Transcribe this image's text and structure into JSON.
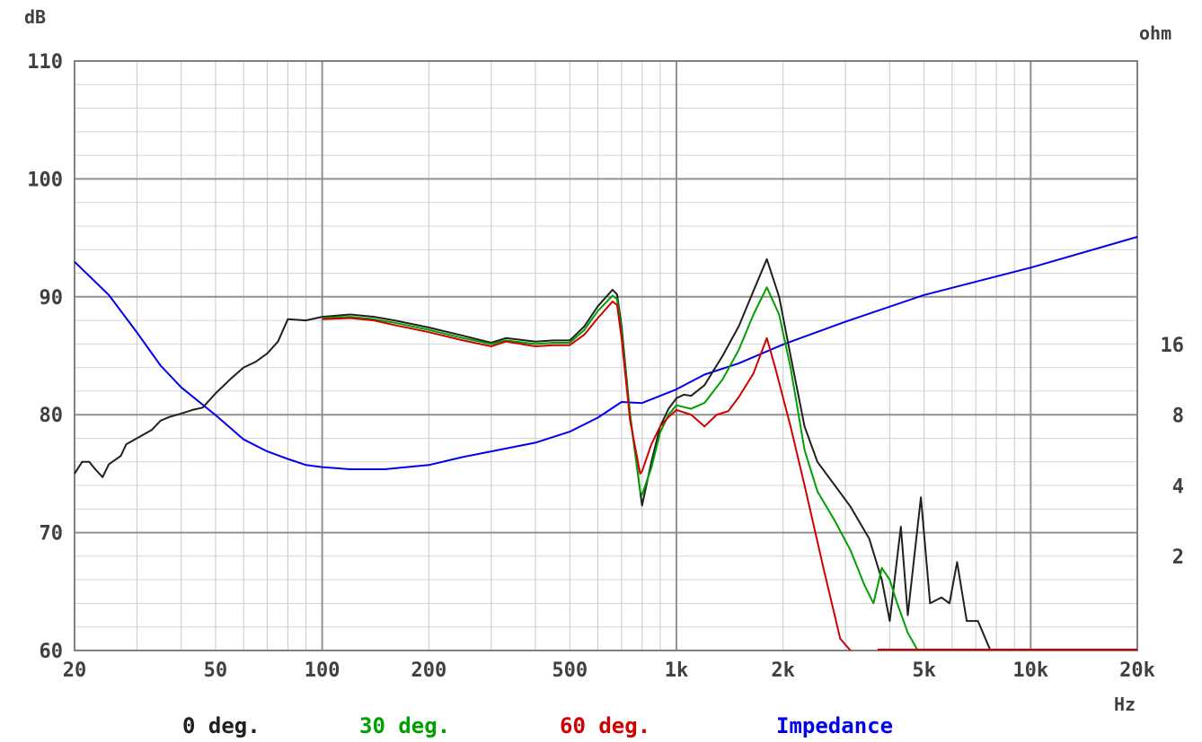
{
  "chart_data": {
    "type": "line",
    "y_unit": "dB",
    "y2_unit": "ohm",
    "x_unit": "Hz",
    "x_scale": "log",
    "xlim": [
      20,
      20000
    ],
    "ylim": [
      60,
      110
    ],
    "y2_scale": "log",
    "grid": true,
    "x_ticks": [
      {
        "value": 20,
        "label": "20"
      },
      {
        "value": 50,
        "label": "50"
      },
      {
        "value": 100,
        "label": "100"
      },
      {
        "value": 200,
        "label": "200"
      },
      {
        "value": 500,
        "label": "500"
      },
      {
        "value": 1000,
        "label": "1k"
      },
      {
        "value": 2000,
        "label": "2k"
      },
      {
        "value": 5000,
        "label": "5k"
      },
      {
        "value": 10000,
        "label": "10k"
      },
      {
        "value": 20000,
        "label": "20k"
      }
    ],
    "y_ticks": [
      {
        "value": 60,
        "label": "60"
      },
      {
        "value": 70,
        "label": "70"
      },
      {
        "value": 80,
        "label": "80"
      },
      {
        "value": 90,
        "label": "90"
      },
      {
        "value": 100,
        "label": "100"
      },
      {
        "value": 110,
        "label": "110"
      }
    ],
    "y2_ticks": [
      {
        "value": 2,
        "label": "2"
      },
      {
        "value": 4,
        "label": "4"
      },
      {
        "value": 8,
        "label": "8"
      },
      {
        "value": 16,
        "label": "16"
      }
    ],
    "legend_position": "bottom",
    "series": [
      {
        "name": "0 deg.",
        "color": "#202020",
        "axis": "left",
        "points": [
          [
            20,
            75
          ],
          [
            21,
            76
          ],
          [
            22,
            76
          ],
          [
            23,
            75.3
          ],
          [
            24,
            74.7
          ],
          [
            25,
            75.8
          ],
          [
            27,
            76.5
          ],
          [
            28,
            77.5
          ],
          [
            30,
            78
          ],
          [
            33,
            78.7
          ],
          [
            35,
            79.5
          ],
          [
            37,
            79.8
          ],
          [
            40,
            80.1
          ],
          [
            43,
            80.4
          ],
          [
            46,
            80.6
          ],
          [
            50,
            81.8
          ],
          [
            55,
            83
          ],
          [
            60,
            84
          ],
          [
            65,
            84.5
          ],
          [
            70,
            85.2
          ],
          [
            75,
            86.2
          ],
          [
            80,
            88.1
          ],
          [
            90,
            88
          ],
          [
            100,
            88.3
          ],
          [
            110,
            88.4
          ],
          [
            120,
            88.5
          ],
          [
            140,
            88.3
          ],
          [
            160,
            88
          ],
          [
            200,
            87.4
          ],
          [
            250,
            86.7
          ],
          [
            300,
            86.1
          ],
          [
            330,
            86.5
          ],
          [
            400,
            86.2
          ],
          [
            450,
            86.3
          ],
          [
            500,
            86.3
          ],
          [
            550,
            87.5
          ],
          [
            600,
            89.2
          ],
          [
            660,
            90.6
          ],
          [
            680,
            90.2
          ],
          [
            700,
            87.5
          ],
          [
            740,
            80
          ],
          [
            790,
            73.5
          ],
          [
            800,
            72.3
          ],
          [
            850,
            76
          ],
          [
            900,
            79
          ],
          [
            950,
            80.5
          ],
          [
            1000,
            81.4
          ],
          [
            1050,
            81.7
          ],
          [
            1100,
            81.6
          ],
          [
            1200,
            82.5
          ],
          [
            1350,
            85
          ],
          [
            1500,
            87.5
          ],
          [
            1650,
            90.5
          ],
          [
            1800,
            93.2
          ],
          [
            1950,
            90
          ],
          [
            2100,
            85
          ],
          [
            2300,
            79
          ],
          [
            2500,
            76
          ],
          [
            2800,
            74
          ],
          [
            3100,
            72.2
          ],
          [
            3500,
            69.5
          ],
          [
            3800,
            66
          ],
          [
            4000,
            62.5
          ],
          [
            4300,
            70.5
          ],
          [
            4500,
            63
          ],
          [
            4900,
            73
          ],
          [
            5200,
            64
          ],
          [
            5600,
            64.5
          ],
          [
            5900,
            64
          ],
          [
            6200,
            67.5
          ],
          [
            6600,
            62.5
          ],
          [
            7100,
            62.5
          ],
          [
            7700,
            60
          ]
        ]
      },
      {
        "name": "30 deg.",
        "color": "#00a000",
        "axis": "left",
        "points": [
          [
            100,
            88.2
          ],
          [
            120,
            88.3
          ],
          [
            140,
            88.1
          ],
          [
            160,
            87.8
          ],
          [
            200,
            87.2
          ],
          [
            250,
            86.5
          ],
          [
            300,
            86
          ],
          [
            330,
            86.3
          ],
          [
            400,
            86
          ],
          [
            450,
            86.1
          ],
          [
            500,
            86.1
          ],
          [
            550,
            87.2
          ],
          [
            600,
            88.8
          ],
          [
            660,
            90.1
          ],
          [
            680,
            89.8
          ],
          [
            700,
            87
          ],
          [
            740,
            80
          ],
          [
            790,
            73.5
          ],
          [
            800,
            73.2
          ],
          [
            850,
            75.5
          ],
          [
            900,
            78.5
          ],
          [
            950,
            80
          ],
          [
            1000,
            80.8
          ],
          [
            1100,
            80.5
          ],
          [
            1200,
            81
          ],
          [
            1350,
            83
          ],
          [
            1500,
            85.5
          ],
          [
            1650,
            88.5
          ],
          [
            1800,
            90.8
          ],
          [
            1950,
            88.5
          ],
          [
            2100,
            84
          ],
          [
            2300,
            77
          ],
          [
            2500,
            73.5
          ],
          [
            2800,
            71
          ],
          [
            3100,
            68.5
          ],
          [
            3400,
            65.5
          ],
          [
            3600,
            64
          ],
          [
            3800,
            67
          ],
          [
            4000,
            66
          ],
          [
            4200,
            64
          ],
          [
            4500,
            61.5
          ],
          [
            4800,
            60
          ]
        ]
      },
      {
        "name": "60 deg.",
        "color": "#d00000",
        "axis": "left",
        "points": [
          [
            100,
            88.1
          ],
          [
            120,
            88.2
          ],
          [
            140,
            88
          ],
          [
            160,
            87.6
          ],
          [
            200,
            87
          ],
          [
            250,
            86.3
          ],
          [
            300,
            85.8
          ],
          [
            330,
            86.2
          ],
          [
            400,
            85.8
          ],
          [
            450,
            85.9
          ],
          [
            500,
            85.9
          ],
          [
            550,
            86.8
          ],
          [
            600,
            88.2
          ],
          [
            660,
            89.6
          ],
          [
            680,
            89.3
          ],
          [
            700,
            86.5
          ],
          [
            740,
            79.5
          ],
          [
            790,
            75
          ],
          [
            800,
            75.2
          ],
          [
            850,
            77.5
          ],
          [
            900,
            79
          ],
          [
            950,
            79.8
          ],
          [
            1000,
            80.4
          ],
          [
            1100,
            80
          ],
          [
            1200,
            79
          ],
          [
            1300,
            80
          ],
          [
            1400,
            80.3
          ],
          [
            1500,
            81.5
          ],
          [
            1650,
            83.5
          ],
          [
            1800,
            86.5
          ],
          [
            1900,
            84
          ],
          [
            2100,
            79
          ],
          [
            2300,
            74
          ],
          [
            2600,
            67
          ],
          [
            2900,
            61
          ],
          [
            3100,
            60
          ]
        ]
      },
      {
        "name": "Impedance",
        "color": "#0000ee",
        "axis": "right",
        "points": [
          [
            20,
            36
          ],
          [
            25,
            26
          ],
          [
            30,
            18
          ],
          [
            35,
            13
          ],
          [
            40,
            10.5
          ],
          [
            50,
            8
          ],
          [
            60,
            6.3
          ],
          [
            70,
            5.6
          ],
          [
            80,
            5.2
          ],
          [
            90,
            4.9
          ],
          [
            100,
            4.8
          ],
          [
            120,
            4.7
          ],
          [
            150,
            4.7
          ],
          [
            200,
            4.9
          ],
          [
            250,
            5.3
          ],
          [
            300,
            5.6
          ],
          [
            400,
            6.1
          ],
          [
            500,
            6.8
          ],
          [
            600,
            7.8
          ],
          [
            700,
            9.1
          ],
          [
            800,
            9.0
          ],
          [
            1000,
            10.3
          ],
          [
            1200,
            11.9
          ],
          [
            1500,
            13.3
          ],
          [
            2000,
            16
          ],
          [
            3000,
            20
          ],
          [
            5000,
            26
          ],
          [
            10000,
            34
          ],
          [
            20000,
            46
          ]
        ]
      }
    ]
  }
}
